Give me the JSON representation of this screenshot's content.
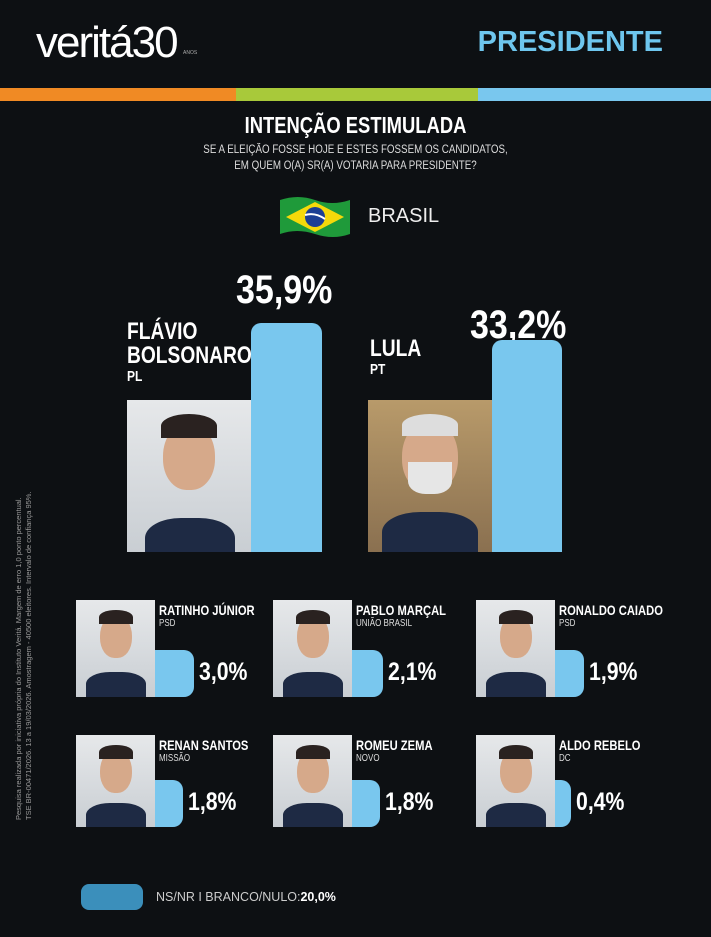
{
  "header": {
    "logo_text": "veritá",
    "logo_number": "30",
    "logo_sub": "ANOS",
    "title": "PRESIDENTE"
  },
  "colors": {
    "orange": "#f08a24",
    "green": "#a8c93a",
    "blue": "#79c7ee",
    "background": "#0d1013"
  },
  "heading": {
    "title": "INTENÇÃO ESTIMULADA",
    "question_line1": "SE A ELEIÇÃO FOSSE HOJE E ESTES FOSSEM OS CANDIDATOS,",
    "question_line2": "EM QUEM O(A) SR(A) VOTARIA PARA PRESIDENTE?"
  },
  "region": {
    "flag_icon": "brazil-flag-icon",
    "name": "BRASIL"
  },
  "leaders": [
    {
      "name_line1": "FLÁVIO",
      "name_line2": "BOLSONARO",
      "party": "PL",
      "percent_label": "35,9%",
      "value": 35.9
    },
    {
      "name_line1": "LULA",
      "name_line2": "",
      "party": "PT",
      "percent_label": "33,2%",
      "value": 33.2
    }
  ],
  "others": [
    {
      "name": "RATINHO JÚNIOR",
      "party": "PSD",
      "percent_label": "3,0%",
      "value": 3.0
    },
    {
      "name": "PABLO MARÇAL",
      "party": "UNIÃO BRASIL",
      "percent_label": "2,1%",
      "value": 2.1
    },
    {
      "name": "RONALDO CAIADO",
      "party": "PSD",
      "percent_label": "1,9%",
      "value": 1.9
    },
    {
      "name": "RENAN SANTOS",
      "party": "MISSÃO",
      "percent_label": "1,8%",
      "value": 1.8
    },
    {
      "name": "ROMEU ZEMA",
      "party": "NOVO",
      "percent_label": "1,8%",
      "value": 1.8
    },
    {
      "name": "ALDO REBELO",
      "party": "DC",
      "percent_label": "0,4%",
      "value": 0.4
    }
  ],
  "footer": {
    "legend_label": "NS/NR  I  BRANCO/NULO:",
    "legend_value": "20,0%",
    "legend_color": "#3b8fbb"
  },
  "methodology_line1": "Pesquisa realizada por iniciativa própria do Instituto Veritá. Margem de erro 1,0 ponto percentual.",
  "methodology_line2": "TSE BR-00471/2026. 13 a 19/03/2026. Amostragem - 40500 eleitores. Intervalo de confiança 95%."
}
